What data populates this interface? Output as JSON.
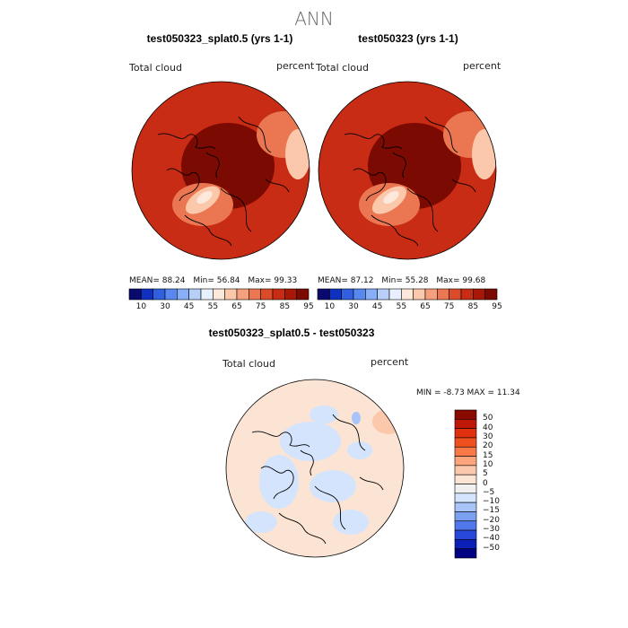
{
  "page": {
    "title": "ANN"
  },
  "panels": [
    {
      "title": "test050323_splat0.5 (yrs 1-1)",
      "variable": "Total cloud",
      "units": "percent",
      "stats": {
        "mean": "MEAN=  88.24",
        "min": "Min=  56.84",
        "max": "Max=  99.33"
      }
    },
    {
      "title": "test050323 (yrs 1-1)",
      "variable": "Total cloud",
      "units": "percent",
      "stats": {
        "mean": "MEAN=  87.12",
        "min": "Min=  55.28",
        "max": "Max=  99.68"
      }
    }
  ],
  "abs_colorbar": {
    "labels": [
      "10",
      "30",
      "45",
      "55",
      "65",
      "75",
      "85",
      "95"
    ],
    "colors": [
      "#0a0a6e",
      "#1030c0",
      "#3060e0",
      "#5888f0",
      "#88aef5",
      "#b8d0f8",
      "#e8f0ff",
      "#fde8dc",
      "#fbc8ac",
      "#f4a07c",
      "#ea7652",
      "#dc4a2a",
      "#c82c14",
      "#a81808",
      "#7a0a02"
    ]
  },
  "diff_panel": {
    "title": "test050323_splat0.5 - test050323",
    "variable": "Total cloud",
    "units": "percent",
    "minmax": "MIN =   -8.73 MAX =   11.34"
  },
  "diff_colorbar": {
    "labels": [
      "50",
      "40",
      "30",
      "20",
      "15",
      "10",
      "5",
      "0",
      "−5",
      "−10",
      "−15",
      "−20",
      "−30",
      "−40",
      "−50"
    ],
    "colors": [
      "#8a0a00",
      "#c01808",
      "#e03010",
      "#f05020",
      "#f87848",
      "#fca47c",
      "#fcc8ac",
      "#fce4d4",
      "#f0f0f0",
      "#d4e4fc",
      "#a8c4f8",
      "#7ca0f0",
      "#5078ec",
      "#2848dc",
      "#0c20b8",
      "#000080"
    ]
  },
  "map_colors": {
    "high": "#7a0a02",
    "mid": "#c82c14",
    "orange": "#ea7652",
    "light": "#fbc8ac",
    "pale": "#fde8dc",
    "diff_pos": "#fce4d4",
    "diff_neg": "#d4e4fc",
    "diff_pos2": "#fcc8ac",
    "diff_neg2": "#a8c4f8"
  }
}
